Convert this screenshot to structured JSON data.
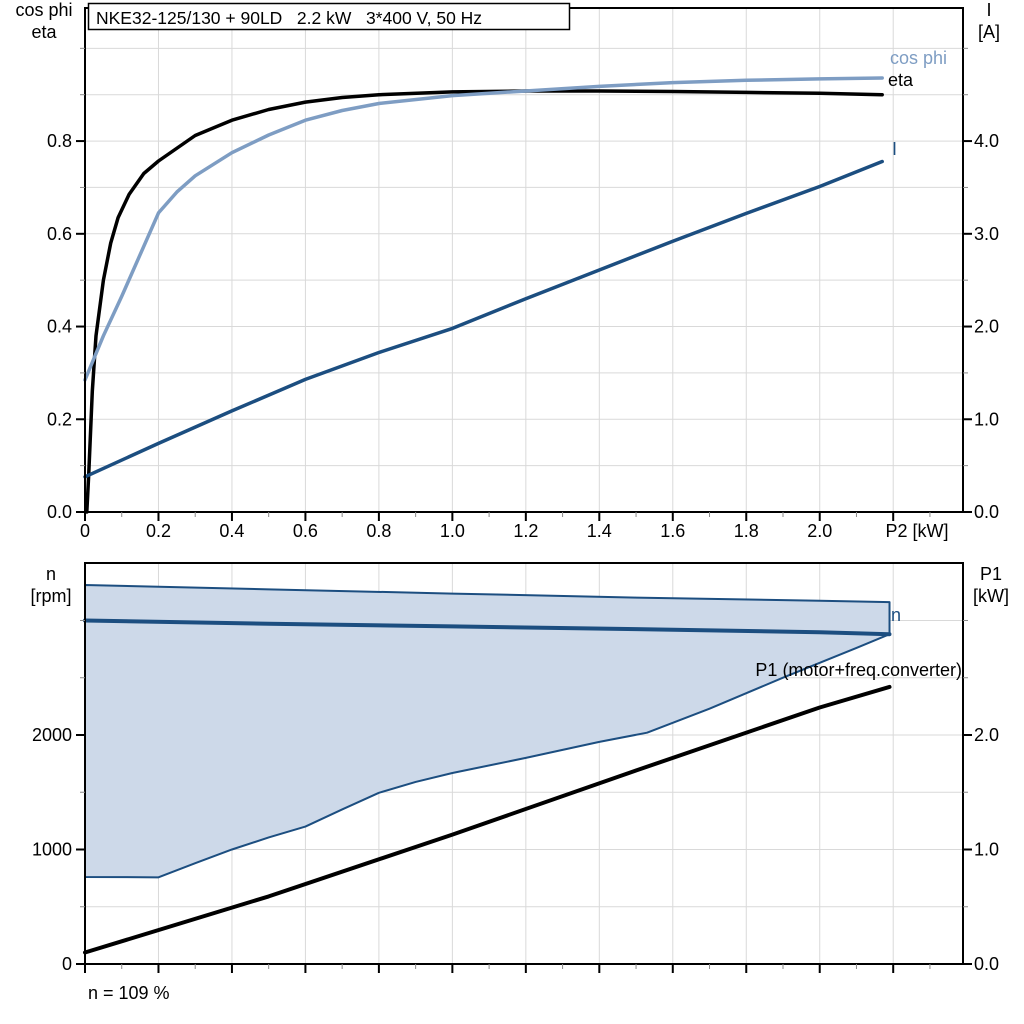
{
  "title_box": "NKE32-125/130 + 90LD   2.2 kW   3*400 V, 50 Hz",
  "colors": {
    "eta_curve": "#000000",
    "cos_phi_curve": "#7e9dc3",
    "current_curve": "#1c4e80",
    "speed_band_fill": "#cdd9e9",
    "speed_band_edge": "#1c4e80",
    "grid": "#d9d9d9",
    "frame": "#000000",
    "minor_tick": "#8a8a8a"
  },
  "chart_data": [
    {
      "type": "line",
      "title": "NKE32-125/130 + 90LD   2.2 kW   3*400 V, 50 Hz",
      "x_axis": {
        "label": "P2 [kW]",
        "range": [
          0,
          2.39
        ],
        "major_ticks": [
          0,
          0.2,
          0.4,
          0.6,
          0.8,
          1.0,
          1.2,
          1.4,
          1.6,
          1.8,
          2.0
        ],
        "tick_labels": [
          "0",
          "0.2",
          "0.4",
          "0.6",
          "0.8",
          "1.0",
          "1.2",
          "1.4",
          "1.6",
          "1.8",
          "2.0"
        ],
        "extra_ticks": [
          2.2
        ],
        "minor_step": 0.1,
        "grid_step": 0.2
      },
      "left_axis": {
        "title_lines": [
          "cos phi",
          "eta"
        ],
        "range": [
          0,
          1.087
        ],
        "major_ticks": [
          0,
          0.2,
          0.4,
          0.6,
          0.8
        ],
        "tick_labels": [
          "0.0",
          "0.2",
          "0.4",
          "0.6",
          "0.8"
        ],
        "minor_step": 0.1
      },
      "right_axis": {
        "title_lines": [
          "I",
          "[A]"
        ],
        "range": [
          0,
          5.435
        ],
        "major_ticks": [
          0,
          1,
          2,
          3,
          4
        ],
        "tick_labels": [
          "0.0",
          "1.0",
          "2.0",
          "3.0",
          "4.0"
        ],
        "minor_step": 0.5
      },
      "grid": true,
      "legend_position": "curve-end-labels",
      "series": [
        {
          "name": "eta",
          "label": "eta",
          "axis": "left",
          "color": "#000000",
          "width": 3.5,
          "points": [
            [
              0.005,
              0.0
            ],
            [
              0.01,
              0.08
            ],
            [
              0.02,
              0.26
            ],
            [
              0.03,
              0.38
            ],
            [
              0.05,
              0.5
            ],
            [
              0.07,
              0.58
            ],
            [
              0.09,
              0.635
            ],
            [
              0.12,
              0.685
            ],
            [
              0.16,
              0.73
            ],
            [
              0.2,
              0.757
            ],
            [
              0.3,
              0.812
            ],
            [
              0.4,
              0.845
            ],
            [
              0.5,
              0.868
            ],
            [
              0.6,
              0.884
            ],
            [
              0.7,
              0.894
            ],
            [
              0.8,
              0.9
            ],
            [
              1.0,
              0.906
            ],
            [
              1.2,
              0.908
            ],
            [
              1.4,
              0.908
            ],
            [
              1.6,
              0.907
            ],
            [
              1.8,
              0.905
            ],
            [
              2.0,
              0.903
            ],
            [
              2.17,
              0.9
            ]
          ]
        },
        {
          "name": "cos phi",
          "label": "cos phi",
          "axis": "left",
          "color": "#7e9dc3",
          "width": 3.5,
          "points": [
            [
              0,
              0.285
            ],
            [
              0.05,
              0.38
            ],
            [
              0.1,
              0.465
            ],
            [
              0.15,
              0.555
            ],
            [
              0.2,
              0.645
            ],
            [
              0.25,
              0.69
            ],
            [
              0.3,
              0.725
            ],
            [
              0.4,
              0.775
            ],
            [
              0.5,
              0.813
            ],
            [
              0.6,
              0.845
            ],
            [
              0.7,
              0.866
            ],
            [
              0.8,
              0.881
            ],
            [
              1.0,
              0.898
            ],
            [
              1.2,
              0.908
            ],
            [
              1.4,
              0.918
            ],
            [
              1.6,
              0.926
            ],
            [
              1.8,
              0.931
            ],
            [
              2.0,
              0.934
            ],
            [
              2.17,
              0.936
            ]
          ]
        },
        {
          "name": "I",
          "label": "I",
          "axis": "right",
          "color": "#1c4e80",
          "width": 3.5,
          "points": [
            [
              0,
              0.38
            ],
            [
              0.2,
              0.74
            ],
            [
              0.4,
              1.09
            ],
            [
              0.6,
              1.43
            ],
            [
              0.8,
              1.72
            ],
            [
              1.0,
              1.98
            ],
            [
              1.2,
              2.3
            ],
            [
              1.4,
              2.61
            ],
            [
              1.6,
              2.92
            ],
            [
              1.8,
              3.22
            ],
            [
              2.0,
              3.51
            ],
            [
              2.17,
              3.78
            ]
          ]
        }
      ]
    },
    {
      "type": "line",
      "title": "",
      "x_axis": {
        "label": "",
        "range": [
          0,
          2.39
        ],
        "major_ticks": [
          0,
          0.2,
          0.4,
          0.6,
          0.8,
          1.0,
          1.2,
          1.4,
          1.6,
          1.8,
          2.0,
          2.2
        ],
        "tick_labels": [],
        "extra_ticks": [],
        "minor_step": 0.1,
        "grid_step": 0.2
      },
      "left_axis": {
        "title_lines": [
          "n",
          "[rpm]"
        ],
        "range": [
          0,
          3502
        ],
        "major_ticks": [
          0,
          1000,
          2000
        ],
        "tick_labels": [
          "0",
          "1000",
          "2000"
        ],
        "minor_step": 500
      },
      "right_axis": {
        "title_lines": [
          "P1",
          "[kW]"
        ],
        "range": [
          0,
          3.502
        ],
        "major_ticks": [
          0,
          1,
          2
        ],
        "tick_labels": [
          "0.0",
          "1.0",
          "2.0"
        ],
        "minor_step": 0.5
      },
      "grid": true,
      "band": {
        "name": "speed-range-band",
        "fill": "#cdd9e9",
        "edge": "#1c4e80",
        "upper": [
          [
            0,
            3310
          ],
          [
            0.5,
            3272
          ],
          [
            1.0,
            3235
          ],
          [
            1.5,
            3200
          ],
          [
            2.0,
            3172
          ],
          [
            2.19,
            3160
          ]
        ],
        "lower": [
          [
            0,
            760
          ],
          [
            0.2,
            757
          ],
          [
            0.3,
            880
          ],
          [
            0.4,
            1000
          ],
          [
            0.5,
            1105
          ],
          [
            0.6,
            1200
          ],
          [
            0.7,
            1350
          ],
          [
            0.8,
            1495
          ],
          [
            0.9,
            1590
          ],
          [
            1.0,
            1668
          ],
          [
            1.2,
            1800
          ],
          [
            1.4,
            1940
          ],
          [
            1.53,
            2020
          ],
          [
            1.7,
            2230
          ],
          [
            1.9,
            2500
          ],
          [
            2.1,
            2760
          ],
          [
            2.19,
            2880
          ]
        ]
      },
      "series": [
        {
          "name": "n",
          "label": "n",
          "axis": "left",
          "color": "#1c4e80",
          "width": 4,
          "points": [
            [
              0,
              3000
            ],
            [
              0.5,
              2972
            ],
            [
              1.0,
              2948
            ],
            [
              1.5,
              2925
            ],
            [
              2.0,
              2898
            ],
            [
              2.19,
              2880
            ]
          ]
        },
        {
          "name": "P1",
          "label": "P1 (motor+freq.converter)",
          "axis": "right",
          "color": "#000000",
          "width": 4,
          "points": [
            [
              0,
              0.1
            ],
            [
              0.5,
              0.59
            ],
            [
              1.0,
              1.13
            ],
            [
              1.5,
              1.69
            ],
            [
              2.0,
              2.24
            ],
            [
              2.19,
              2.42
            ]
          ]
        }
      ],
      "footnote": "n = 109 %"
    }
  ]
}
